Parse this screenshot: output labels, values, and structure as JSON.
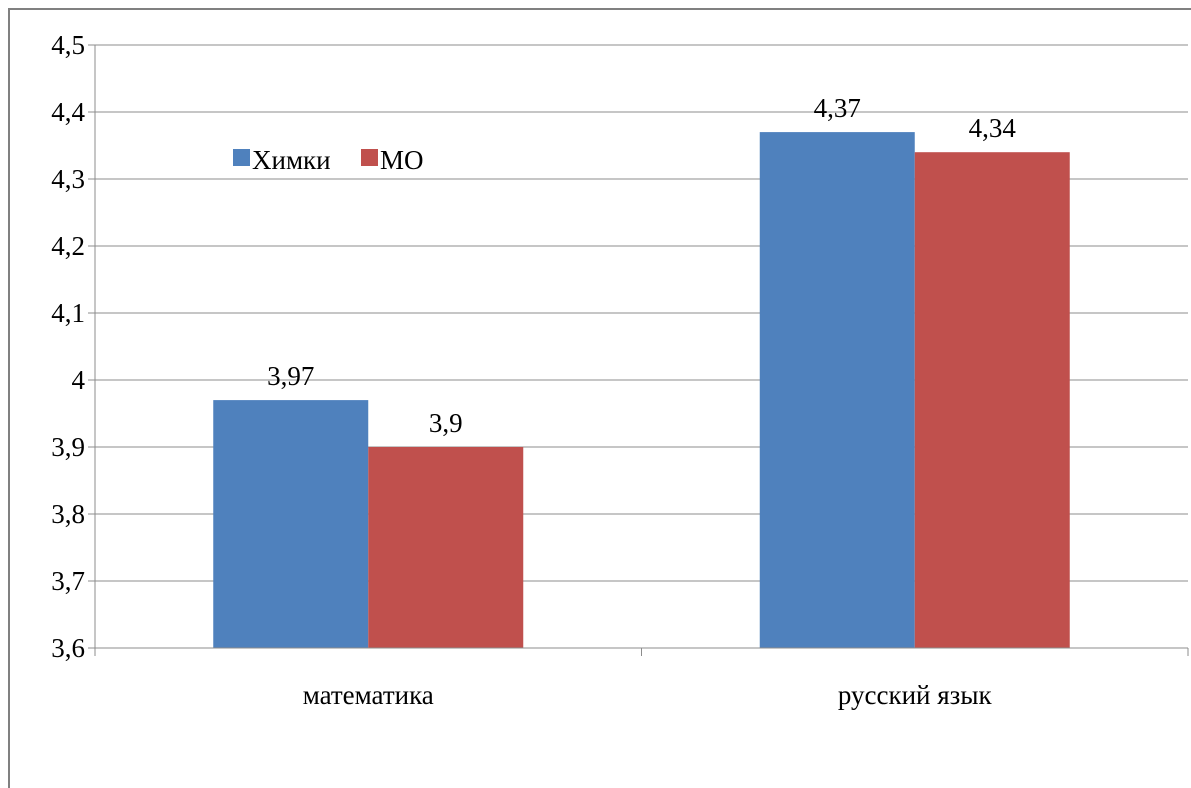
{
  "chart_data": {
    "type": "bar",
    "categories": [
      "математика",
      "русский язык"
    ],
    "series": [
      {
        "name": "Химки",
        "values": [
          3.97,
          4.37
        ],
        "labels": [
          "3,97",
          "4,37"
        ],
        "color": "#4F81BD"
      },
      {
        "name": "МО",
        "values": [
          3.9,
          4.34
        ],
        "labels": [
          "3,9",
          "4,34"
        ],
        "color": "#C0504D"
      }
    ],
    "ylim": [
      3.6,
      4.5
    ],
    "yticks": [
      3.6,
      3.7,
      3.8,
      3.9,
      4.0,
      4.1,
      4.2,
      4.3,
      4.4,
      4.5
    ],
    "ytick_labels": [
      "3,6",
      "3,7",
      "3,8",
      "3,9",
      "4",
      "4,1",
      "4,2",
      "4,3",
      "4,4",
      "4,5"
    ],
    "grid": true,
    "legend_position": "top-left",
    "title": "",
    "xlabel": "",
    "ylabel": ""
  }
}
